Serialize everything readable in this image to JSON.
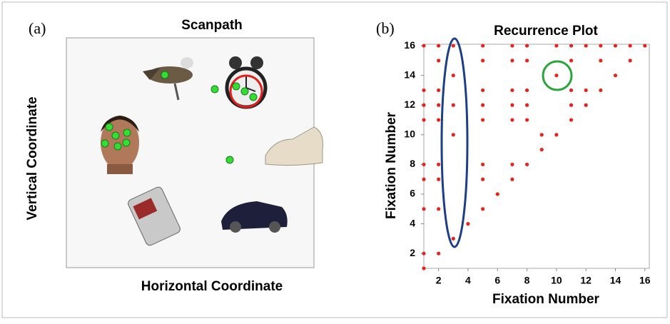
{
  "panel_a": {
    "label": "(a)",
    "title": "Scanpath",
    "xlabel": "Horizontal Coordinate",
    "ylabel": "Vertical Coordinate"
  },
  "chart_data": {
    "type": "scatter",
    "label": "(b)",
    "title": "Recurrence Plot",
    "xlabel": "Fixation Number",
    "ylabel": "Fixation Number",
    "x": [
      1,
      2,
      3,
      5,
      7,
      8,
      10,
      11,
      12,
      13,
      14,
      15,
      16,
      2,
      5,
      7,
      8,
      11,
      13,
      15,
      3,
      10,
      14,
      1,
      2,
      5,
      7,
      8,
      11,
      12,
      13,
      1,
      2,
      3,
      5,
      7,
      8,
      11,
      12,
      1,
      2,
      5,
      7,
      8,
      11,
      3,
      9,
      10,
      9,
      1,
      2,
      5,
      7,
      8,
      1,
      2,
      5,
      7,
      6,
      1,
      2,
      5,
      4,
      3,
      1,
      2,
      1
    ],
    "y": [
      16,
      16,
      16,
      16,
      16,
      16,
      16,
      16,
      16,
      16,
      16,
      16,
      16,
      15,
      15,
      15,
      15,
      15,
      15,
      15,
      14,
      14,
      14,
      13,
      13,
      13,
      13,
      13,
      13,
      13,
      13,
      12,
      12,
      12,
      12,
      12,
      12,
      12,
      12,
      11,
      11,
      11,
      11,
      11,
      11,
      10,
      10,
      10,
      9,
      8,
      8,
      8,
      8,
      8,
      7,
      7,
      7,
      7,
      6,
      5,
      5,
      5,
      4,
      3,
      2,
      2,
      1
    ],
    "color": "#e8231e",
    "xlim": [
      1,
      16.3
    ],
    "ylim": [
      1,
      16.1
    ],
    "xticks": [
      2,
      4,
      6,
      8,
      10,
      12,
      14,
      16
    ],
    "yticks": [
      2,
      4,
      6,
      8,
      10,
      12,
      14,
      16
    ]
  }
}
